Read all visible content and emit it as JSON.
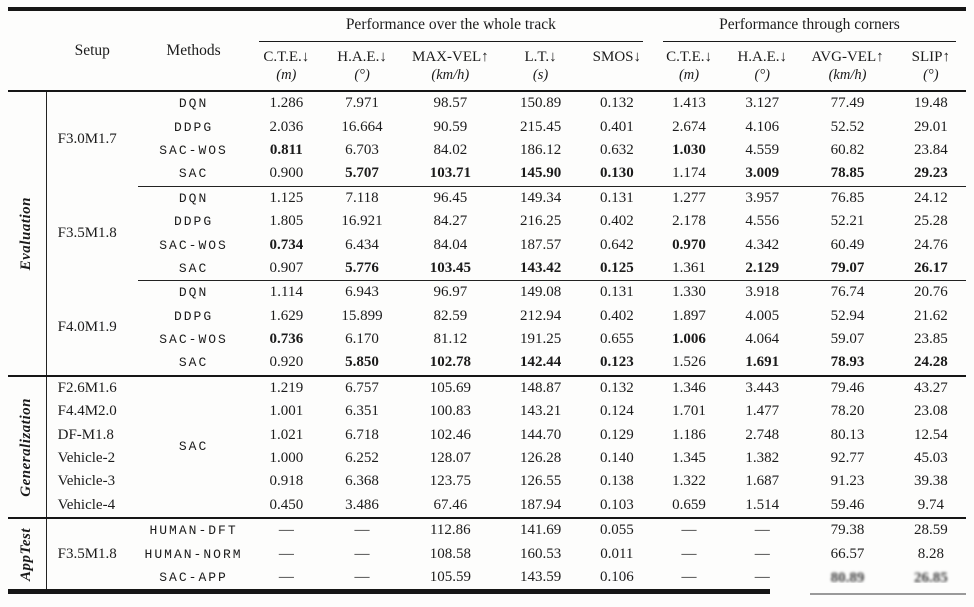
{
  "header": {
    "setup": "Setup",
    "methods": "Methods",
    "group_left": "Performance over the whole track",
    "group_right": "Performance through corners",
    "metrics": [
      {
        "label": "C.T.E.↓",
        "unit": "(m)"
      },
      {
        "label": "H.A.E.↓",
        "unit": "(°)"
      },
      {
        "label": "MAX-VEL↑",
        "unit": "(km/h)"
      },
      {
        "label": "L.T.↓",
        "unit": "(s)"
      },
      {
        "label": "SMOS↓",
        "unit": ""
      },
      {
        "label": "C.T.E.↓",
        "unit": "(m)"
      },
      {
        "label": "H.A.E.↓",
        "unit": "(°)"
      },
      {
        "label": "AVG-VEL↑",
        "unit": "(km/h)"
      },
      {
        "label": "SLIP↑",
        "unit": "(°)"
      }
    ]
  },
  "sections": [
    {
      "name": "Evaluation",
      "blocks": [
        {
          "setup": "F3.0M1.7",
          "rows": [
            {
              "method": "DQN",
              "values": [
                "1.286",
                "7.971",
                "98.57",
                "150.89",
                "0.132",
                "1.413",
                "3.127",
                "77.49",
                "19.48"
              ],
              "bold": []
            },
            {
              "method": "DDPG",
              "values": [
                "2.036",
                "16.664",
                "90.59",
                "215.45",
                "0.401",
                "2.674",
                "4.106",
                "52.52",
                "29.01"
              ],
              "bold": []
            },
            {
              "method": "SAC-WOS",
              "values": [
                "0.811",
                "6.703",
                "84.02",
                "186.12",
                "0.632",
                "1.030",
                "4.559",
                "60.82",
                "23.84"
              ],
              "bold": [
                0,
                5
              ]
            },
            {
              "method": "SAC",
              "values": [
                "0.900",
                "5.707",
                "103.71",
                "145.90",
                "0.130",
                "1.174",
                "3.009",
                "78.85",
                "29.23"
              ],
              "bold": [
                1,
                2,
                3,
                4,
                6,
                7,
                8
              ]
            }
          ]
        },
        {
          "setup": "F3.5M1.8",
          "rows": [
            {
              "method": "DQN",
              "values": [
                "1.125",
                "7.118",
                "96.45",
                "149.34",
                "0.131",
                "1.277",
                "3.957",
                "76.85",
                "24.12"
              ],
              "bold": []
            },
            {
              "method": "DDPG",
              "values": [
                "1.805",
                "16.921",
                "84.27",
                "216.25",
                "0.402",
                "2.178",
                "4.556",
                "52.21",
                "25.28"
              ],
              "bold": []
            },
            {
              "method": "SAC-WOS",
              "values": [
                "0.734",
                "6.434",
                "84.04",
                "187.57",
                "0.642",
                "0.970",
                "4.342",
                "60.49",
                "24.76"
              ],
              "bold": [
                0,
                5
              ]
            },
            {
              "method": "SAC",
              "values": [
                "0.907",
                "5.776",
                "103.45",
                "143.42",
                "0.125",
                "1.361",
                "2.129",
                "79.07",
                "26.17"
              ],
              "bold": [
                1,
                2,
                3,
                4,
                6,
                7,
                8
              ]
            }
          ]
        },
        {
          "setup": "F4.0M1.9",
          "rows": [
            {
              "method": "DQN",
              "values": [
                "1.114",
                "6.943",
                "96.97",
                "149.08",
                "0.131",
                "1.330",
                "3.918",
                "76.74",
                "20.76"
              ],
              "bold": []
            },
            {
              "method": "DDPG",
              "values": [
                "1.629",
                "15.899",
                "82.59",
                "212.94",
                "0.402",
                "1.897",
                "4.005",
                "52.94",
                "21.62"
              ],
              "bold": []
            },
            {
              "method": "SAC-WOS",
              "values": [
                "0.736",
                "6.170",
                "81.12",
                "191.25",
                "0.655",
                "1.006",
                "4.064",
                "59.07",
                "23.85"
              ],
              "bold": [
                0,
                5
              ]
            },
            {
              "method": "SAC",
              "values": [
                "0.920",
                "5.850",
                "102.78",
                "142.44",
                "0.123",
                "1.526",
                "1.691",
                "78.93",
                "24.28"
              ],
              "bold": [
                1,
                2,
                3,
                4,
                6,
                7,
                8
              ]
            }
          ]
        }
      ]
    },
    {
      "name": "Generalization",
      "blocks": [
        {
          "method": "SAC",
          "rows": [
            {
              "setup": "F2.6M1.6",
              "values": [
                "1.219",
                "6.757",
                "105.69",
                "148.87",
                "0.132",
                "1.346",
                "3.443",
                "79.46",
                "43.27"
              ],
              "bold": []
            },
            {
              "setup": "F4.4M2.0",
              "values": [
                "1.001",
                "6.351",
                "100.83",
                "143.21",
                "0.124",
                "1.701",
                "1.477",
                "78.20",
                "23.08"
              ],
              "bold": []
            },
            {
              "setup": "DF-M1.8",
              "values": [
                "1.021",
                "6.718",
                "102.46",
                "144.70",
                "0.129",
                "1.186",
                "2.748",
                "80.13",
                "12.54"
              ],
              "bold": []
            },
            {
              "setup": "Vehicle-2",
              "values": [
                "1.000",
                "6.252",
                "128.07",
                "126.28",
                "0.140",
                "1.345",
                "1.382",
                "92.77",
                "45.03"
              ],
              "bold": []
            },
            {
              "setup": "Vehicle-3",
              "values": [
                "0.918",
                "6.368",
                "123.75",
                "126.55",
                "0.138",
                "1.322",
                "1.687",
                "91.23",
                "39.38"
              ],
              "bold": []
            },
            {
              "setup": "Vehicle-4",
              "values": [
                "0.450",
                "3.486",
                "67.46",
                "187.94",
                "0.103",
                "0.659",
                "1.514",
                "59.46",
                "9.74"
              ],
              "bold": []
            }
          ]
        }
      ]
    },
    {
      "name": "AppTest",
      "blocks": [
        {
          "setup": "F3.5M1.8",
          "rows": [
            {
              "method": "HUMAN-DFT",
              "values": [
                "—",
                "—",
                "112.86",
                "141.69",
                "0.055",
                "—",
                "—",
                "79.38",
                "28.59"
              ],
              "bold": []
            },
            {
              "method": "HUMAN-NORM",
              "values": [
                "—",
                "—",
                "108.58",
                "160.53",
                "0.011",
                "—",
                "—",
                "66.57",
                "8.28"
              ],
              "bold": []
            },
            {
              "method": "SAC-APP",
              "values": [
                "—",
                "—",
                "105.59",
                "143.59",
                "0.106",
                "—",
                "—",
                "80.89",
                "26.85"
              ],
              "bold": [],
              "degraded": [
                7,
                8
              ]
            }
          ]
        }
      ]
    }
  ]
}
